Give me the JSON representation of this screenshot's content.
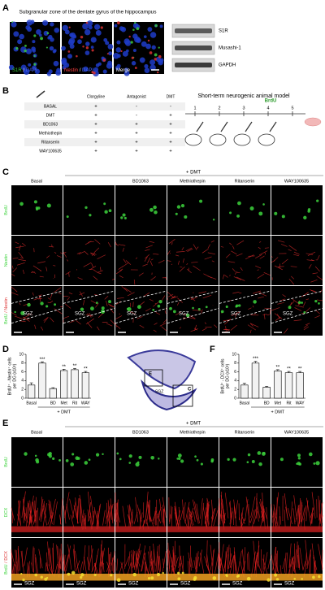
{
  "panel_a": {
    "label": "A",
    "title": "Subgranular zone of the dentate gyrus of the hippocampus",
    "images": [
      {
        "stain": "S1R",
        "sep": "/",
        "counter": "DAPI"
      },
      {
        "stain": "Nestin",
        "sep": "/",
        "counter": "DAPI"
      },
      {
        "stain": "Merge"
      }
    ],
    "blot": [
      "S1R",
      "Musashi-1",
      "GAPDH"
    ]
  },
  "panel_b": {
    "label": "B",
    "columns": [
      "Clorgyline",
      "Antagonist",
      "DMT"
    ],
    "rows": [
      {
        "name": "BASAL",
        "cells": [
          "+",
          "-",
          "-"
        ]
      },
      {
        "name": "DMT",
        "cells": [
          "+",
          "-",
          "+"
        ]
      },
      {
        "name": "BD1063",
        "cells": [
          "+",
          "+",
          "+"
        ]
      },
      {
        "name": "Methiothepin",
        "cells": [
          "+",
          "+",
          "+"
        ]
      },
      {
        "name": "Ritanserin",
        "cells": [
          "+",
          "+",
          "+"
        ]
      },
      {
        "name": "WAY100635",
        "cells": [
          "+",
          "+",
          "+"
        ]
      }
    ],
    "model_title": "Short-term neurogenic animal model",
    "days": [
      "1",
      "2",
      "3",
      "4",
      "5"
    ],
    "injection": "BrdU"
  },
  "panel_c": {
    "label": "C",
    "group": "+ DMT",
    "columns": [
      "Basal",
      null,
      "BD1063",
      "Methiothepin",
      "Ritanserin",
      "WAY100635"
    ],
    "rows": [
      {
        "stain": "BrdU"
      },
      {
        "stain": "Nestin"
      },
      {
        "stain": "BrdU",
        "sep": "/",
        "counter": "Nestin"
      }
    ],
    "region": "SGZ"
  },
  "inset": {
    "boxes": [
      "E",
      "C"
    ],
    "region": "SGZ"
  },
  "panel_e": {
    "label": "E",
    "group": "+ DMT",
    "columns": [
      "Basal",
      null,
      "BD1063",
      "Methiothepin",
      "Ritanserin",
      "WAY100635"
    ],
    "rows": [
      {
        "stain": "BrdU"
      },
      {
        "stain": "DCX"
      },
      {
        "stain": "BrdU",
        "sep": "/",
        "counter": "DCX"
      }
    ],
    "region": "SGZ"
  },
  "chart_data": [
    {
      "type": "bar",
      "panel": "D",
      "ylabel": [
        "BrdU⁺ - Nestin⁺ cells",
        "per DG (x10²)"
      ],
      "categories": [
        "Basal",
        null,
        "BD",
        "Met",
        "Rit",
        "WAY"
      ],
      "group": "+ DMT",
      "values": [
        3.0,
        8.0,
        2.2,
        6.3,
        6.5,
        5.8
      ],
      "errors": [
        0.5,
        0.3,
        0.2,
        0.3,
        0.3,
        0.3
      ],
      "significance": [
        null,
        "***",
        null,
        "**",
        "**",
        "**"
      ],
      "color": "#f2f2f2",
      "edgecolor": "#000000",
      "ylim": [
        0,
        10
      ],
      "yticks": [
        0,
        2,
        4,
        6,
        8,
        10
      ]
    },
    {
      "type": "bar",
      "panel": "F",
      "ylabel": [
        "BrdU⁺ - DCX⁺ cells",
        "per DG (x10²)"
      ],
      "categories": [
        "Basal",
        null,
        "BD",
        "Met",
        "Rit",
        "WAY"
      ],
      "group": "+ DMT",
      "values": [
        3.0,
        8.0,
        2.5,
        6.2,
        5.8,
        5.8
      ],
      "errors": [
        0.4,
        0.4,
        0.2,
        0.3,
        0.3,
        0.3
      ],
      "significance": [
        null,
        "***",
        null,
        "**",
        "**",
        "**"
      ],
      "color": "#f2f2f2",
      "edgecolor": "#000000",
      "ylim": [
        0,
        10
      ],
      "yticks": [
        0,
        2,
        4,
        6,
        8,
        10
      ]
    }
  ]
}
